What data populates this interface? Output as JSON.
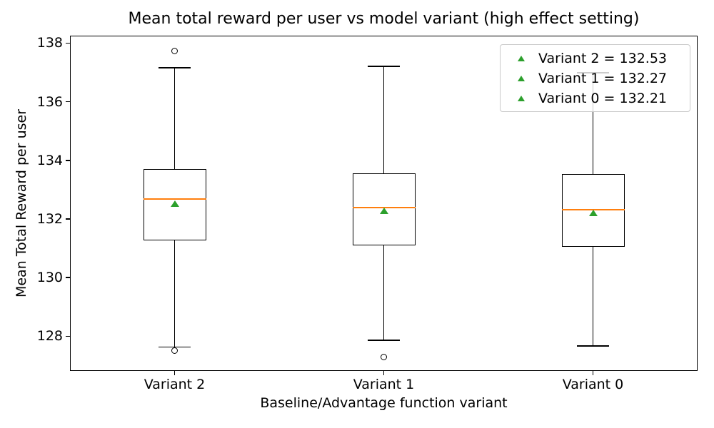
{
  "chart_data": {
    "type": "box",
    "title": "Mean total reward per user vs model variant (high effect setting)",
    "xlabel": "Baseline/Advantage function variant",
    "ylabel": "Mean Total Reward per user",
    "categories": [
      "Variant 2",
      "Variant 1",
      "Variant 0"
    ],
    "ylim": [
      126.82,
      138.25
    ],
    "yticks": [
      128,
      130,
      132,
      134,
      136,
      138
    ],
    "grid": false,
    "series": [
      {
        "label": "Variant 2",
        "mean": 132.53,
        "median": 132.68,
        "q1": 131.27,
        "q3": 133.7,
        "whisker_low": 127.64,
        "whisker_high": 137.16,
        "fliers": [
          137.72,
          127.49
        ]
      },
      {
        "label": "Variant 1",
        "mean": 132.27,
        "median": 132.39,
        "q1": 131.1,
        "q3": 133.56,
        "whisker_low": 127.86,
        "whisker_high": 137.21,
        "fliers": [
          127.28
        ]
      },
      {
        "label": "Variant 0",
        "mean": 132.21,
        "median": 132.32,
        "q1": 131.05,
        "q3": 133.53,
        "whisker_low": 127.67,
        "whisker_high": 136.99,
        "fliers": []
      }
    ],
    "legend": {
      "position": "upper right",
      "marker_color": "#2ca02c",
      "entries": [
        "Variant 2 = 132.53",
        "Variant 1 = 132.27",
        "Variant 0 = 132.21"
      ]
    },
    "colors": {
      "median": "#ff7f0e",
      "mean_marker": "#2ca02c",
      "box_edge": "#000000",
      "whisker": "#000000",
      "flier_edge": "#000000"
    }
  }
}
